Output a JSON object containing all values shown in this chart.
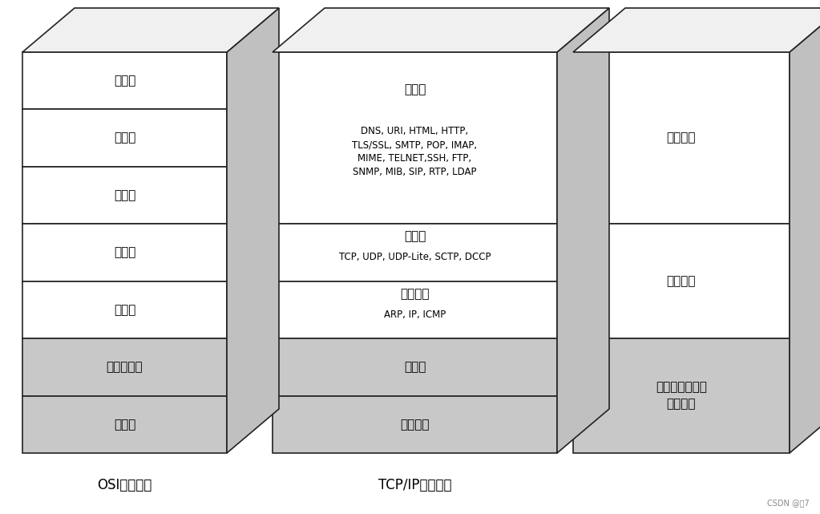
{
  "fig_width": 10.23,
  "fig_height": 6.41,
  "bg_color": "#ffffff",
  "osi_label": "OSI参考模型",
  "tcp_label": "TCP/IP分层模型",
  "osi_layers_top_to_bottom": [
    {
      "text": "应用层",
      "gray": false
    },
    {
      "text": "表示层",
      "gray": false
    },
    {
      "text": "会话层",
      "gray": false
    },
    {
      "text": "传输层",
      "gray": false
    },
    {
      "text": "网络层",
      "gray": false
    },
    {
      "text": "数据链路层",
      "gray": true
    },
    {
      "text": "物理层",
      "gray": true
    }
  ],
  "tcp_layers_top_to_bottom": [
    {
      "title": "应用层",
      "text": "DNS, URI, HTML, HTTP,\nTLS/SSL, SMTP, POP, IMAP,\nMIME, TELNET,SSH, FTP,\nSNMP, MIB, SIP, RTP, LDAP",
      "gray": false,
      "units": 3
    },
    {
      "title": "传输层",
      "text": "TCP, UDP, UDP-Lite, SCTP, DCCP",
      "gray": false,
      "units": 1
    },
    {
      "title": "互联网层",
      "text": "ARP, IP, ICMP",
      "gray": false,
      "units": 1
    },
    {
      "title": "网卡层",
      "text": "",
      "gray": true,
      "units": 1
    },
    {
      "title": "（硬件）",
      "text": "",
      "gray": true,
      "units": 1
    }
  ],
  "app_layers_top_to_bottom": [
    {
      "text": "应用程序",
      "gray": false,
      "units": 3
    },
    {
      "text": "操作系统",
      "gray": false,
      "units": 2
    },
    {
      "text": "设备驱动程序与\n网络接口",
      "gray": true,
      "units": 2
    }
  ],
  "white_color": "#ffffff",
  "gray_color": "#c8c8c8",
  "top_face_color": "#f0f0f0",
  "right_face_color": "#c0c0c0",
  "border_color": "#222222",
  "text_color": "#000000",
  "watermark": "CSDN @乷7"
}
